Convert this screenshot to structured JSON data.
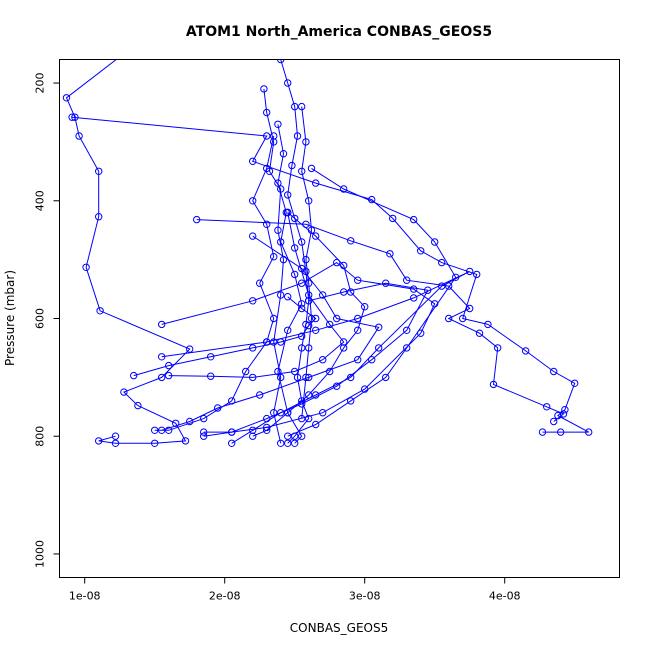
{
  "chart_data": {
    "type": "line",
    "title": "ATOM1 North_America CONBAS_GEOS5",
    "xlabel": "CONBAS_GEOS5",
    "ylabel": "Pressure (mbar)",
    "xlim": [
      8.2e-09,
      4.82e-08
    ],
    "ylim": [
      160,
      1040
    ],
    "y_reversed": true,
    "x_ticks": [
      {
        "value": 1e-08,
        "label": "1e-08"
      },
      {
        "value": 2e-08,
        "label": "2e-08"
      },
      {
        "value": 3e-08,
        "label": "3e-08"
      },
      {
        "value": 4e-08,
        "label": "4e-08"
      }
    ],
    "y_ticks": [
      {
        "value": 200,
        "label": "200"
      },
      {
        "value": 400,
        "label": "400"
      },
      {
        "value": 600,
        "label": "600"
      },
      {
        "value": 800,
        "label": "800"
      },
      {
        "value": 1000,
        "label": "1000"
      }
    ],
    "grid": false,
    "line_color": "#0000ff",
    "marker": "open-circle",
    "series": [
      {
        "values": [
          [
            1.28e-08,
            150
          ],
          [
            8.7e-09,
            225
          ],
          [
            9.3e-09,
            258
          ],
          [
            9.6e-09,
            290
          ],
          [
            1.1e-08,
            350
          ],
          [
            1.1e-08,
            427
          ],
          [
            1.01e-08,
            513
          ],
          [
            1.11e-08,
            587
          ],
          [
            1.75e-08,
            652
          ],
          [
            1.55e-08,
            700
          ],
          [
            1.28e-08,
            725
          ],
          [
            1.38e-08,
            748
          ],
          [
            1.65e-08,
            778
          ],
          [
            1.72e-08,
            808
          ],
          [
            1.5e-08,
            812
          ],
          [
            1.22e-08,
            812
          ],
          [
            1.1e-08,
            808
          ],
          [
            1.22e-08,
            800
          ]
        ]
      },
      {
        "values": [
          [
            2.4e-08,
            160
          ],
          [
            2.45e-08,
            200
          ],
          [
            2.5e-08,
            240
          ],
          [
            2.52e-08,
            290
          ],
          [
            2.48e-08,
            340
          ],
          [
            2.45e-08,
            390
          ],
          [
            2.5e-08,
            430
          ],
          [
            2.55e-08,
            470
          ],
          [
            2.58e-08,
            520
          ],
          [
            2.6e-08,
            570
          ],
          [
            2.58e-08,
            610
          ],
          [
            2.55e-08,
            650
          ],
          [
            2.52e-08,
            700
          ],
          [
            2.55e-08,
            740
          ],
          [
            2.6e-08,
            770
          ],
          [
            2.5e-08,
            800
          ],
          [
            2.45e-08,
            812
          ]
        ]
      },
      {
        "values": [
          [
            9.1e-09,
            258
          ],
          [
            2.3e-08,
            290
          ],
          [
            2.2e-08,
            333
          ],
          [
            2.65e-08,
            370
          ],
          [
            3.05e-08,
            398
          ],
          [
            3.2e-08,
            430
          ],
          [
            3.4e-08,
            485
          ],
          [
            3.55e-08,
            505
          ],
          [
            3.8e-08,
            525
          ],
          [
            3.7e-08,
            600
          ],
          [
            3.88e-08,
            610
          ],
          [
            4.15e-08,
            655
          ],
          [
            4.35e-08,
            690
          ],
          [
            4.5e-08,
            710
          ],
          [
            4.43e-08,
            755
          ],
          [
            4.38e-08,
            765
          ],
          [
            4.6e-08,
            793
          ],
          [
            4.4e-08,
            793
          ],
          [
            4.27e-08,
            793
          ]
        ]
      },
      {
        "values": [
          [
            1.8e-08,
            432
          ],
          [
            2.58e-08,
            440
          ],
          [
            2.9e-08,
            468
          ],
          [
            3.18e-08,
            490
          ],
          [
            3.3e-08,
            535
          ],
          [
            3.6e-08,
            545
          ],
          [
            3.75e-08,
            583
          ],
          [
            3.6e-08,
            600
          ],
          [
            3.82e-08,
            625
          ],
          [
            3.95e-08,
            650
          ],
          [
            3.92e-08,
            712
          ],
          [
            4.3e-08,
            750
          ],
          [
            4.42e-08,
            762
          ],
          [
            4.35e-08,
            775
          ]
        ]
      },
      {
        "values": [
          [
            1.55e-08,
            610
          ],
          [
            2.2e-08,
            570
          ],
          [
            2.55e-08,
            540
          ],
          [
            2.8e-08,
            505
          ],
          [
            2.95e-08,
            535
          ],
          [
            3.35e-08,
            550
          ],
          [
            3.5e-08,
            575
          ],
          [
            3.4e-08,
            625
          ],
          [
            3e-08,
            720
          ],
          [
            2.7e-08,
            760
          ],
          [
            2.3e-08,
            785
          ],
          [
            2.05e-08,
            793
          ],
          [
            1.85e-08,
            793
          ]
        ]
      },
      {
        "values": [
          [
            2.2e-08,
            460
          ],
          [
            2.55e-08,
            515
          ],
          [
            2.7e-08,
            560
          ],
          [
            2.8e-08,
            600
          ],
          [
            3.1e-08,
            615
          ],
          [
            2.95e-08,
            670
          ],
          [
            2.6e-08,
            700
          ],
          [
            2.25e-08,
            730
          ],
          [
            1.95e-08,
            752
          ],
          [
            1.75e-08,
            775
          ],
          [
            1.55e-08,
            790
          ]
        ]
      },
      {
        "values": [
          [
            2.35e-08,
            290
          ],
          [
            2.3e-08,
            345
          ],
          [
            2.2e-08,
            400
          ],
          [
            2.3e-08,
            440
          ],
          [
            2.35e-08,
            495
          ],
          [
            2.25e-08,
            540
          ],
          [
            2.35e-08,
            600
          ],
          [
            2.3e-08,
            640
          ],
          [
            2.15e-08,
            690
          ],
          [
            2.05e-08,
            740
          ],
          [
            1.85e-08,
            770
          ],
          [
            1.6e-08,
            790
          ],
          [
            1.5e-08,
            790
          ]
        ]
      },
      {
        "values": [
          [
            2.38e-08,
            270
          ],
          [
            2.42e-08,
            320
          ],
          [
            2.38e-08,
            370
          ],
          [
            2.44e-08,
            420
          ],
          [
            2.4e-08,
            470
          ],
          [
            2.5e-08,
            525
          ],
          [
            2.55e-08,
            575
          ],
          [
            2.45e-08,
            620
          ],
          [
            2.38e-08,
            690
          ],
          [
            2.45e-08,
            760
          ],
          [
            2.55e-08,
            800
          ],
          [
            2.5e-08,
            812
          ]
        ]
      },
      {
        "values": [
          [
            1.55e-08,
            665
          ],
          [
            2.3e-08,
            640
          ],
          [
            2.65e-08,
            620
          ],
          [
            2.95e-08,
            600
          ],
          [
            3.35e-08,
            565
          ],
          [
            3.75e-08,
            520
          ],
          [
            3.55e-08,
            545
          ],
          [
            3.1e-08,
            650
          ],
          [
            2.9e-08,
            700
          ],
          [
            2.65e-08,
            730
          ],
          [
            2.4e-08,
            760
          ],
          [
            2.2e-08,
            790
          ],
          [
            2.05e-08,
            812
          ]
        ]
      },
      {
        "values": [
          [
            2.62e-08,
            345
          ],
          [
            2.85e-08,
            380
          ],
          [
            3.35e-08,
            432
          ],
          [
            3.5e-08,
            470
          ],
          [
            3.65e-08,
            530
          ],
          [
            3.3e-08,
            650
          ],
          [
            3.15e-08,
            700
          ],
          [
            2.9e-08,
            740
          ],
          [
            2.65e-08,
            780
          ],
          [
            2.45e-08,
            800
          ]
        ]
      },
      {
        "values": [
          [
            2.6e-08,
            570
          ],
          [
            2.85e-08,
            555
          ],
          [
            3.15e-08,
            540
          ],
          [
            3.45e-08,
            552
          ],
          [
            3.3e-08,
            620
          ],
          [
            3.05e-08,
            670
          ],
          [
            2.8e-08,
            715
          ],
          [
            2.55e-08,
            745
          ],
          [
            2.3e-08,
            770
          ],
          [
            2.05e-08,
            793
          ],
          [
            1.85e-08,
            800
          ]
        ]
      },
      {
        "values": [
          [
            2.45e-08,
            420
          ],
          [
            2.65e-08,
            460
          ],
          [
            2.85e-08,
            510
          ],
          [
            2.9e-08,
            555
          ],
          [
            3e-08,
            580
          ],
          [
            2.95e-08,
            620
          ],
          [
            2.85e-08,
            650
          ],
          [
            2.75e-08,
            690
          ],
          [
            2.6e-08,
            730
          ],
          [
            2.45e-08,
            760
          ],
          [
            2.3e-08,
            790
          ],
          [
            2.2e-08,
            800
          ]
        ]
      },
      {
        "values": [
          [
            1.35e-08,
            697
          ],
          [
            1.6e-08,
            680
          ],
          [
            1.9e-08,
            665
          ],
          [
            2.2e-08,
            650
          ],
          [
            2.4e-08,
            640
          ],
          [
            2.55e-08,
            630
          ],
          [
            2.6e-08,
            612
          ],
          [
            2.65e-08,
            600
          ],
          [
            2.55e-08,
            583
          ],
          [
            2.45e-08,
            563
          ]
        ]
      },
      {
        "values": [
          [
            1.6e-08,
            697
          ],
          [
            1.9e-08,
            698
          ],
          [
            2.2e-08,
            700
          ],
          [
            2.5e-08,
            690
          ],
          [
            2.7e-08,
            670
          ],
          [
            2.85e-08,
            640
          ],
          [
            2.75e-08,
            610
          ],
          [
            2.6e-08,
            560
          ],
          [
            2.5e-08,
            480
          ],
          [
            2.45e-08,
            420
          ]
        ]
      },
      {
        "values": [
          [
            2.28e-08,
            210
          ],
          [
            2.3e-08,
            250
          ],
          [
            2.35e-08,
            300
          ],
          [
            2.32e-08,
            350
          ],
          [
            2.4e-08,
            380
          ],
          [
            2.38e-08,
            450
          ],
          [
            2.42e-08,
            500
          ],
          [
            2.4e-08,
            560
          ],
          [
            2.35e-08,
            640
          ],
          [
            2.4e-08,
            700
          ],
          [
            2.35e-08,
            760
          ],
          [
            2.4e-08,
            812
          ]
        ]
      },
      {
        "values": [
          [
            2.55e-08,
            240
          ],
          [
            2.58e-08,
            300
          ],
          [
            2.55e-08,
            350
          ],
          [
            2.6e-08,
            400
          ],
          [
            2.62e-08,
            450
          ],
          [
            2.58e-08,
            500
          ],
          [
            2.6e-08,
            540
          ],
          [
            2.62e-08,
            600
          ],
          [
            2.6e-08,
            650
          ],
          [
            2.58e-08,
            700
          ],
          [
            2.55e-08,
            770
          ]
        ]
      }
    ]
  }
}
